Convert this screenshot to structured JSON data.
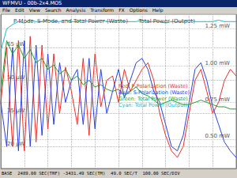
{
  "window": {
    "title": "WFMVU - 00b-2x4.MOS",
    "menu": [
      "File",
      "Edit",
      "View",
      "Search",
      "Analysis",
      "Transform",
      "FX",
      "Options",
      "Help"
    ],
    "status": "BASE  2489.00 SEC(TRF) -3431.49 SEC(TM)  49.0 SEC/T  100.00 SEC/DIV"
  },
  "chart_data": {
    "type": "line",
    "ylabel": "P-Mode, S-Mode, and Total Power (Waste)",
    "y2label": "Total Power (Output)",
    "annotations": [
      "Red: P-Polarization (Waste)",
      "Blue: S-Polarization (Waste)",
      "Green: Total Power (Waste)",
      "Cyan: Total Power (Output)"
    ],
    "x": [
      0,
      0.25,
      0.5,
      0.75,
      1,
      1.25,
      1.5,
      1.75,
      2,
      2.25,
      2.5,
      2.75,
      3,
      3.25,
      3.5,
      3.75,
      4,
      4.25,
      4.5,
      4.75,
      5,
      5.25,
      5.5,
      5.75,
      6,
      6.25,
      6.5,
      6.75,
      7,
      7.25,
      7.5,
      7.75,
      8,
      8.25,
      8.5,
      8.75,
      9,
      9.25,
      9.5,
      9.75,
      10
    ],
    "series": [
      {
        "name": "P-Polarization (Waste)",
        "color": "#e8302a",
        "values": [
          40,
          65,
          20,
          68,
          18,
          70,
          22,
          66,
          28,
          62,
          35,
          56,
          45,
          30,
          60,
          25,
          62,
          38,
          50,
          52,
          40,
          55,
          45,
          50,
          55,
          58,
          50,
          35,
          25,
          18,
          15,
          20,
          35,
          50,
          55,
          45,
          35,
          40,
          50,
          55,
          52
        ]
      },
      {
        "name": "S-Polarization (Waste)",
        "color": "#2a3fe0",
        "values": [
          40,
          20,
          65,
          18,
          68,
          20,
          66,
          25,
          62,
          30,
          58,
          40,
          50,
          55,
          30,
          60,
          28,
          55,
          35,
          45,
          55,
          42,
          50,
          58,
          60,
          55,
          45,
          40,
          30,
          20,
          18,
          25,
          40,
          55,
          58,
          50,
          38,
          30,
          22,
          18,
          15
        ]
      },
      {
        "name": "Total Power (Waste)",
        "color": "#1fa02a",
        "values": [
          45,
          68,
          62,
          66,
          60,
          64,
          58,
          60,
          55,
          57,
          53,
          55,
          50,
          52,
          48,
          50,
          47,
          48,
          46,
          45,
          46,
          43,
          45,
          47,
          44,
          43,
          41,
          39,
          40,
          41,
          40,
          39,
          39,
          40,
          41,
          40,
          39,
          38,
          38,
          37,
          37
        ]
      },
      {
        "name": "Total Power (Output)",
        "color": "#1ab8c8",
        "axis": "y2",
        "values": [
          1.1,
          1.25,
          1.28,
          1.3,
          1.29,
          1.31,
          1.3,
          1.3,
          1.31,
          1.3,
          1.3,
          1.31,
          1.3,
          1.3,
          1.31,
          1.3,
          1.3,
          1.31,
          1.3,
          1.3,
          1.31,
          1.3,
          1.3,
          1.3,
          1.31,
          1.3,
          1.3,
          1.3,
          1.29,
          1.3,
          1.3,
          1.3,
          1.31,
          1.3,
          1.3,
          1.3,
          1.3,
          1.31,
          1.3,
          1.3,
          1.3
        ]
      }
    ],
    "xlim": [
      0,
      10
    ],
    "xticks": [
      0,
      1,
      2,
      3,
      4,
      5,
      6,
      7,
      8,
      9,
      10
    ],
    "ylim": [
      10,
      80
    ],
    "yticks": [
      {
        "value": 20,
        "label": "20 µW"
      },
      {
        "value": 35,
        "label": "35 µW"
      },
      {
        "value": 50,
        "label": "50 µW"
      },
      {
        "value": 65,
        "label": "65 µW"
      }
    ],
    "y2lim": [
      0.3,
      1.35
    ],
    "y2ticks": [
      {
        "value": 0.5,
        "label": "0.50 mW"
      },
      {
        "value": 0.75,
        "label": "0.75 mW"
      },
      {
        "value": 1.0,
        "label": "1.00 mW"
      },
      {
        "value": 1.25,
        "label": "1.25 mW"
      }
    ],
    "grid": true,
    "tick_labels": "y"
  }
}
